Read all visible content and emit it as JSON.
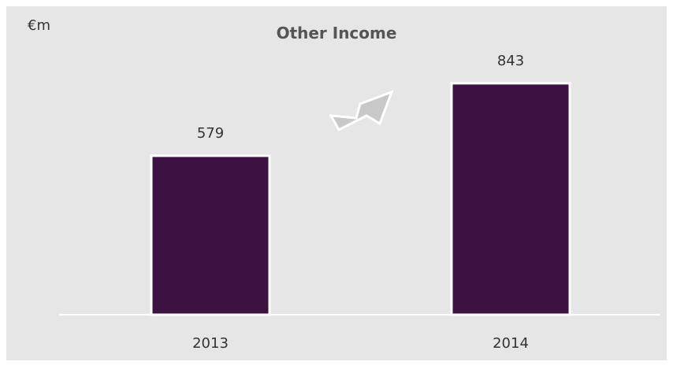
{
  "chart_data": {
    "type": "bar",
    "title": "Other Income",
    "unit": "€m",
    "categories": [
      "2013",
      "2014"
    ],
    "values": [
      579,
      843
    ],
    "ylim": [
      0,
      900
    ],
    "xlabel": "",
    "ylabel": "",
    "grid": false,
    "legend": "none",
    "bar_color": "#3d1142",
    "bar_border_color": "#ffffff",
    "arrow_color": "#c8c8c8",
    "arrow_direction": "up-right"
  }
}
